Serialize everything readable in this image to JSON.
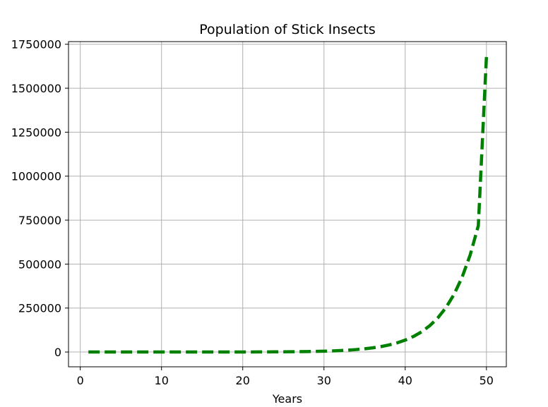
{
  "chart_data": {
    "type": "line",
    "title": "Population of Stick Insects",
    "xlabel": "Years",
    "ylabel": "",
    "xlim": [
      -1.45,
      52.45
    ],
    "ylim": [
      -84000,
      1765000
    ],
    "x_ticks": [
      0,
      10,
      20,
      30,
      40,
      50
    ],
    "y_ticks": [
      0,
      250000,
      500000,
      750000,
      1000000,
      1250000,
      1500000,
      1750000
    ],
    "grid": true,
    "legend": "none",
    "series": [
      {
        "color": "#008000",
        "line_style": "dashed",
        "x": [
          1,
          2,
          3,
          4,
          5,
          6,
          7,
          8,
          9,
          10,
          11,
          12,
          13,
          14,
          15,
          16,
          17,
          18,
          19,
          20,
          21,
          22,
          23,
          24,
          25,
          26,
          27,
          28,
          29,
          30,
          31,
          32,
          33,
          34,
          35,
          36,
          37,
          38,
          39,
          40,
          41,
          42,
          43,
          44,
          45,
          46,
          47,
          48,
          49,
          50
        ],
        "y": [
          2,
          3,
          4,
          5,
          7,
          9,
          12,
          15,
          20,
          26,
          34,
          44,
          57,
          74,
          96,
          125,
          162,
          211,
          274,
          356,
          463,
          602,
          782,
          1017,
          1322,
          1719,
          2235,
          2905,
          3777,
          4910,
          6383,
          8298,
          10787,
          14023,
          18230,
          23699,
          30809,
          40052,
          52067,
          67687,
          87993,
          114391,
          148709,
          193321,
          251318,
          326713,
          424727,
          552145,
          717789,
          1680000
        ]
      }
    ]
  }
}
